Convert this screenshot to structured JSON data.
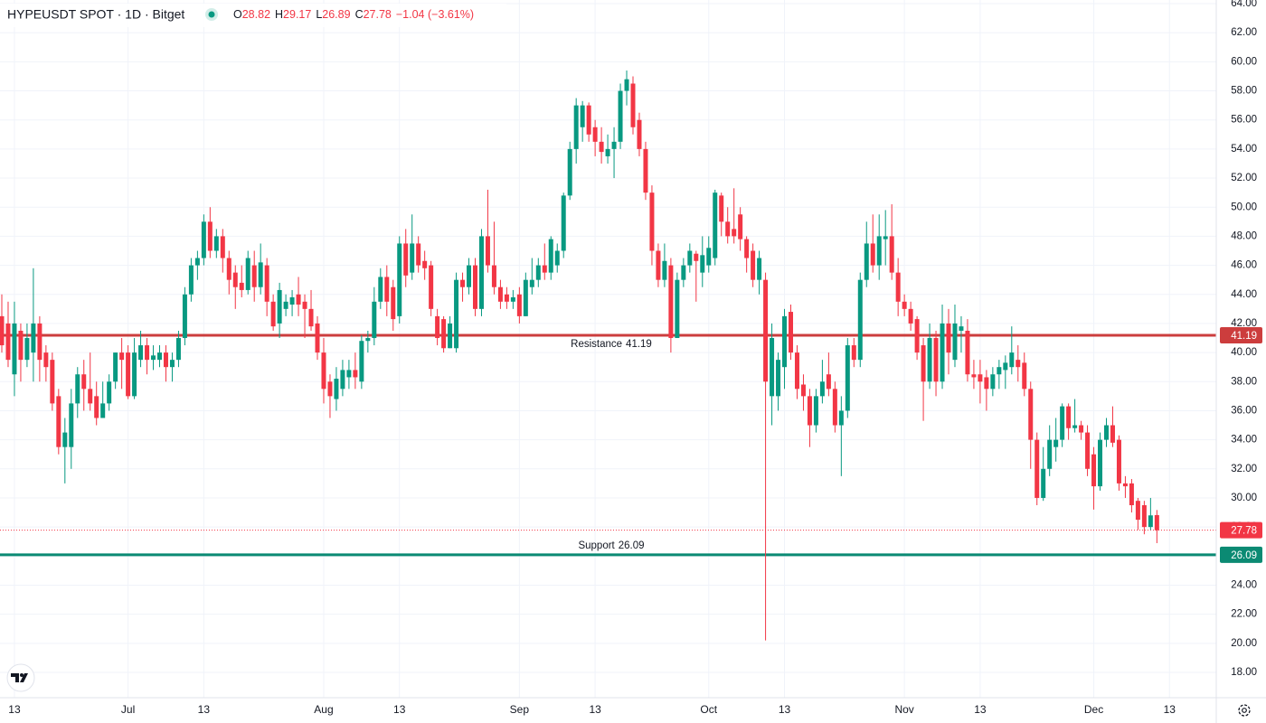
{
  "chart_data": {
    "type": "candlestick",
    "title": "HYPEUSDT SPOT · 1D · Bitget",
    "header": {
      "labels": [
        "O",
        "H",
        "L",
        "C"
      ],
      "values": [
        28.82,
        29.17,
        26.89,
        27.78
      ],
      "change": "−1.04 (−3.61%)"
    },
    "up_color": "#089981",
    "down_color": "#f23645",
    "grid": true,
    "x": [
      "Jun 11",
      "Jun 12",
      "Jun 13",
      "Jun 14",
      "Jun 15",
      "Jun 16",
      "Jun 17",
      "Jun 18",
      "Jun 19",
      "Jun 20",
      "Jun 21",
      "Jun 22",
      "Jun 23",
      "Jun 24",
      "Jun 25",
      "Jun 26",
      "Jun 27",
      "Jun 28",
      "Jun 29",
      "Jun 30",
      "Jul 1",
      "Jul 2",
      "Jul 3",
      "Jul 4",
      "Jul 5",
      "Jul 6",
      "Jul 7",
      "Jul 8",
      "Jul 9",
      "Jul 10",
      "Jul 11",
      "Jul 12",
      "Jul 13",
      "Jul 14",
      "Jul 15",
      "Jul 16",
      "Jul 17",
      "Jul 18",
      "Jul 19",
      "Jul 20",
      "Jul 21",
      "Jul 22",
      "Jul 23",
      "Jul 24",
      "Jul 25",
      "Jul 26",
      "Jul 27",
      "Jul 28",
      "Jul 29",
      "Jul 30",
      "Jul 31",
      "Aug 1",
      "Aug 2",
      "Aug 3",
      "Aug 4",
      "Aug 5",
      "Aug 6",
      "Aug 7",
      "Aug 8",
      "Aug 9",
      "Aug 10",
      "Aug 11",
      "Aug 12",
      "Aug 13",
      "Aug 14",
      "Aug 15",
      "Aug 16",
      "Aug 17",
      "Aug 18",
      "Aug 19",
      "Aug 20",
      "Aug 21",
      "Aug 22",
      "Aug 23",
      "Aug 24",
      "Aug 25",
      "Aug 26",
      "Aug 27",
      "Aug 28",
      "Aug 29",
      "Aug 30",
      "Aug 31",
      "Sep 1",
      "Sep 2",
      "Sep 3",
      "Sep 4",
      "Sep 5",
      "Sep 6",
      "Sep 7",
      "Sep 8",
      "Sep 9",
      "Sep 10",
      "Sep 11",
      "Sep 12",
      "Sep 13",
      "Sep 14",
      "Sep 15",
      "Sep 16",
      "Sep 17",
      "Sep 18",
      "Sep 19",
      "Sep 20",
      "Sep 21",
      "Sep 22",
      "Sep 23",
      "Sep 24",
      "Sep 25",
      "Sep 26",
      "Sep 27",
      "Sep 28",
      "Sep 29",
      "Sep 30",
      "Oct 1",
      "Oct 2",
      "Oct 3",
      "Oct 4",
      "Oct 5",
      "Oct 6",
      "Oct 7",
      "Oct 8",
      "Oct 9",
      "Oct 10",
      "Oct 11",
      "Oct 12",
      "Oct 13",
      "Oct 14",
      "Oct 15",
      "Oct 16",
      "Oct 17",
      "Oct 18",
      "Oct 19",
      "Oct 20",
      "Oct 21",
      "Oct 22",
      "Oct 23",
      "Oct 24",
      "Oct 25",
      "Oct 26",
      "Oct 27",
      "Oct 28",
      "Oct 29",
      "Oct 30",
      "Oct 31",
      "Nov 1",
      "Nov 2",
      "Nov 3",
      "Nov 4",
      "Nov 5",
      "Nov 6",
      "Nov 7",
      "Nov 8",
      "Nov 9",
      "Nov 10",
      "Nov 11",
      "Nov 12",
      "Nov 13",
      "Nov 14",
      "Nov 15",
      "Nov 16",
      "Nov 17",
      "Nov 18",
      "Nov 19",
      "Nov 20",
      "Nov 21",
      "Nov 22",
      "Nov 23",
      "Nov 24",
      "Nov 25",
      "Nov 26",
      "Nov 27",
      "Nov 28",
      "Nov 29",
      "Nov 30",
      "Dec 1",
      "Dec 2",
      "Dec 3",
      "Dec 4",
      "Dec 5",
      "Dec 6",
      "Dec 7",
      "Dec 8",
      "Dec 9",
      "Dec 10",
      "Dec 11"
    ],
    "ohlc": [
      [
        42.5,
        44,
        40,
        40.5
      ],
      [
        42,
        43.5,
        39,
        39.5
      ],
      [
        38.5,
        43.5,
        37,
        42
      ],
      [
        41.5,
        42,
        38,
        39.5
      ],
      [
        39.5,
        42,
        39,
        41
      ],
      [
        40,
        45.8,
        38,
        42
      ],
      [
        42,
        42.5,
        38,
        39.5
      ],
      [
        40,
        40.5,
        38,
        39
      ],
      [
        39.5,
        40,
        36,
        36.5
      ],
      [
        37,
        37.5,
        33,
        33.5
      ],
      [
        33.5,
        35.5,
        31,
        34.5
      ],
      [
        33.5,
        37.5,
        32,
        36.5
      ],
      [
        36.5,
        39,
        35.5,
        38.5
      ],
      [
        38.5,
        39.5,
        36,
        37.5
      ],
      [
        37.5,
        40,
        36,
        36.5
      ],
      [
        37,
        38,
        35,
        35.5
      ],
      [
        35.5,
        38,
        35.5,
        36.5
      ],
      [
        36.5,
        38.5,
        36,
        38
      ],
      [
        38,
        40,
        37.5,
        40
      ],
      [
        40,
        41,
        37.5,
        39.5
      ],
      [
        40,
        40.5,
        36.8,
        37
      ],
      [
        37,
        41,
        36.8,
        40
      ],
      [
        39.5,
        41.5,
        39,
        40.5
      ],
      [
        40.5,
        41,
        38.5,
        39.5
      ],
      [
        39.5,
        40.5,
        38.8,
        39.8
      ],
      [
        39.5,
        40.5,
        39,
        40
      ],
      [
        40,
        40.5,
        38,
        39
      ],
      [
        39,
        40,
        38,
        39.5
      ],
      [
        39.5,
        41.5,
        39,
        41
      ],
      [
        41,
        44.5,
        40.5,
        44
      ],
      [
        44,
        46.5,
        43.5,
        46
      ],
      [
        46,
        47,
        45,
        46.5
      ],
      [
        46.5,
        49.5,
        46,
        49
      ],
      [
        49,
        50,
        46.5,
        47
      ],
      [
        47,
        48.5,
        46.5,
        48
      ],
      [
        48,
        48.5,
        45.5,
        46.5
      ],
      [
        46.5,
        47,
        44,
        45
      ],
      [
        45.5,
        46,
        43,
        44.5
      ],
      [
        44.8,
        46,
        43.8,
        44.3
      ],
      [
        44.3,
        47,
        44,
        46.5
      ],
      [
        46,
        47,
        43.5,
        44.5
      ],
      [
        44.5,
        47.5,
        44,
        46.2
      ],
      [
        46,
        46.5,
        42.5,
        43.5
      ],
      [
        43.5,
        44,
        41.5,
        41.8
      ],
      [
        42,
        44.8,
        41,
        44.3
      ],
      [
        43,
        44,
        42.5,
        43.5
      ],
      [
        43.3,
        44.3,
        42.5,
        43.8
      ],
      [
        44,
        45.2,
        42.5,
        43.3
      ],
      [
        43.5,
        44,
        41,
        43
      ],
      [
        43,
        44.3,
        41.5,
        41.8
      ],
      [
        42,
        42.5,
        39.5,
        40
      ],
      [
        40,
        41,
        36.5,
        37.5
      ],
      [
        38,
        38.5,
        35.5,
        37
      ],
      [
        36.8,
        39,
        36,
        38.2
      ],
      [
        37.5,
        39.5,
        37,
        38.8
      ],
      [
        38.3,
        39.5,
        37.5,
        38.8
      ],
      [
        38.8,
        40,
        37.5,
        38.3
      ],
      [
        38,
        41.2,
        37.5,
        40.8
      ],
      [
        40.8,
        41.5,
        40,
        41
      ],
      [
        41,
        44.5,
        40.5,
        43.5
      ],
      [
        43.5,
        45.8,
        43,
        45.2
      ],
      [
        45.2,
        46,
        42.5,
        43.5
      ],
      [
        44.5,
        45,
        41.5,
        42.3
      ],
      [
        42.5,
        48,
        42,
        47.5
      ],
      [
        47.5,
        48.5,
        44.5,
        45.3
      ],
      [
        45.5,
        49.5,
        45,
        47.5
      ],
      [
        47.5,
        48,
        45.5,
        46
      ],
      [
        46.3,
        47,
        45,
        45.8
      ],
      [
        46,
        46.3,
        42.5,
        43
      ],
      [
        42.5,
        43,
        40.5,
        41
      ],
      [
        42.3,
        42.5,
        40,
        40.3
      ],
      [
        40.3,
        42.5,
        40.3,
        42
      ],
      [
        40.3,
        45.5,
        40,
        45
      ],
      [
        45,
        45.5,
        43.5,
        44.5
      ],
      [
        44.5,
        46.5,
        44,
        46
      ],
      [
        46,
        46.5,
        42.5,
        43
      ],
      [
        43,
        48.5,
        42.5,
        48
      ],
      [
        48,
        51.2,
        45.5,
        46
      ],
      [
        46,
        49,
        44,
        44.5
      ],
      [
        44.5,
        45,
        43,
        43.5
      ],
      [
        44,
        44.5,
        43,
        43.5
      ],
      [
        43.5,
        44.3,
        43,
        43.8
      ],
      [
        44,
        44.5,
        42,
        42.5
      ],
      [
        42.5,
        45.5,
        42.5,
        45
      ],
      [
        44.5,
        46.5,
        44,
        45
      ],
      [
        45,
        46.5,
        44.5,
        46
      ],
      [
        46,
        47.5,
        45,
        45.5
      ],
      [
        45.5,
        48,
        45,
        47.8
      ],
      [
        46,
        47.5,
        45.5,
        47
      ],
      [
        47,
        51,
        46.5,
        50.8
      ],
      [
        50.8,
        54.5,
        50.5,
        54
      ],
      [
        54,
        57.5,
        53,
        57
      ],
      [
        55.5,
        57.3,
        54.5,
        57
      ],
      [
        57,
        57.2,
        54.5,
        55
      ],
      [
        55.5,
        56,
        53.5,
        54.5
      ],
      [
        54.5,
        55.5,
        53,
        53.8
      ],
      [
        53.5,
        55,
        53,
        54
      ],
      [
        54,
        55.5,
        52,
        54.5
      ],
      [
        54.5,
        58.5,
        54,
        58
      ],
      [
        58,
        59.4,
        57,
        58.8
      ],
      [
        58.5,
        59,
        55,
        55.5
      ],
      [
        56,
        56.5,
        53.5,
        54
      ],
      [
        54,
        54.5,
        50.5,
        51
      ],
      [
        51,
        51.5,
        46,
        47
      ],
      [
        47,
        47.5,
        44.5,
        45
      ],
      [
        45,
        47.5,
        44.5,
        46.3
      ],
      [
        46,
        46.5,
        40,
        41
      ],
      [
        41,
        45.5,
        41,
        45
      ],
      [
        45,
        46.5,
        44.5,
        46
      ],
      [
        46,
        47.5,
        45.5,
        47
      ],
      [
        46.8,
        47,
        43.5,
        46.3
      ],
      [
        45.5,
        48,
        44.5,
        46.7
      ],
      [
        46,
        48,
        45.5,
        47.2
      ],
      [
        46.5,
        51.2,
        46,
        51
      ],
      [
        50.8,
        51,
        48,
        49
      ],
      [
        49,
        50,
        47.5,
        48
      ],
      [
        48.5,
        51.3,
        47.5,
        48
      ],
      [
        49.5,
        50,
        47,
        47.8
      ],
      [
        47.8,
        48,
        45.5,
        46.5
      ],
      [
        47,
        47.5,
        44.5,
        45
      ],
      [
        45,
        47,
        44,
        46.5
      ],
      [
        45,
        45.5,
        20.2,
        38
      ],
      [
        37,
        42,
        35,
        41
      ],
      [
        37,
        40,
        36,
        39.5
      ],
      [
        39,
        43,
        37.5,
        42.5
      ],
      [
        42.8,
        43.3,
        39.5,
        40
      ],
      [
        40,
        40.5,
        36.8,
        37.5
      ],
      [
        37.8,
        38.5,
        36,
        37
      ],
      [
        37,
        37.5,
        33.5,
        35
      ],
      [
        35,
        37.5,
        34.5,
        37
      ],
      [
        37,
        39.5,
        36.5,
        38
      ],
      [
        38.5,
        40,
        37,
        37.5
      ],
      [
        37.5,
        38,
        34.5,
        35
      ],
      [
        35,
        37,
        31.5,
        36
      ],
      [
        36,
        41,
        35.5,
        40.5
      ],
      [
        40.5,
        41,
        39,
        39.5
      ],
      [
        39.5,
        45.5,
        39,
        45
      ],
      [
        45,
        49,
        44.5,
        47.5
      ],
      [
        47.5,
        49.5,
        45.5,
        46
      ],
      [
        46,
        49.5,
        45,
        48
      ],
      [
        47.8,
        49.8,
        46,
        48
      ],
      [
        48,
        50.2,
        45,
        45.5
      ],
      [
        45.5,
        46.5,
        42.5,
        43.5
      ],
      [
        43.5,
        44,
        42.5,
        43
      ],
      [
        43,
        43.5,
        41.5,
        42
      ],
      [
        42.3,
        42.5,
        39.5,
        40
      ],
      [
        40.5,
        41,
        35.3,
        38
      ],
      [
        38,
        42,
        37.5,
        41
      ],
      [
        41,
        41.5,
        37,
        38
      ],
      [
        38,
        43.3,
        37.5,
        42
      ],
      [
        42,
        43,
        38.5,
        40
      ],
      [
        39.5,
        43.3,
        39,
        42
      ],
      [
        41.5,
        42.5,
        40,
        41.8
      ],
      [
        41.5,
        42.3,
        38,
        38.5
      ],
      [
        38.5,
        39.5,
        37.5,
        38.3
      ],
      [
        38.5,
        39.5,
        36.5,
        38
      ],
      [
        38.3,
        38.8,
        36,
        37.5
      ],
      [
        37.5,
        39,
        37,
        38.5
      ],
      [
        38.5,
        39.5,
        37.5,
        39
      ],
      [
        38.8,
        39.8,
        37.5,
        39.3
      ],
      [
        39,
        41.8,
        38.5,
        40
      ],
      [
        39.5,
        40.5,
        38,
        39
      ],
      [
        39.3,
        40,
        37,
        37.5
      ],
      [
        37.5,
        38,
        32,
        34
      ],
      [
        34,
        34.5,
        29.5,
        30
      ],
      [
        30,
        33.5,
        29.8,
        32
      ],
      [
        32,
        35,
        31.5,
        34
      ],
      [
        33.5,
        35.5,
        32.5,
        34
      ],
      [
        34,
        36.5,
        33.5,
        36.3
      ],
      [
        36.3,
        36.5,
        34,
        34.8
      ],
      [
        34.8,
        36.8,
        34.5,
        35
      ],
      [
        35,
        35.3,
        34,
        34.5
      ],
      [
        34.5,
        35,
        31.5,
        32
      ],
      [
        33,
        33.5,
        29.2,
        30.8
      ],
      [
        30.8,
        34.5,
        30.5,
        34
      ],
      [
        34,
        35.5,
        33.5,
        35
      ],
      [
        35,
        36.3,
        33.5,
        33.8
      ],
      [
        34,
        34.3,
        30.5,
        31
      ],
      [
        31,
        31.5,
        30,
        30.8
      ],
      [
        31,
        31.3,
        29,
        29.5
      ],
      [
        29.8,
        30,
        27.8,
        28.5
      ],
      [
        29.5,
        29.8,
        27.5,
        28
      ],
      [
        28,
        30,
        27.8,
        28.8
      ],
      [
        28.82,
        29.17,
        26.89,
        27.78
      ]
    ],
    "ylim": [
      16.26,
      64.25
    ],
    "yticks": [
      {
        "value": 18,
        "label": "18.00"
      },
      {
        "value": 20,
        "label": "20.00"
      },
      {
        "value": 22,
        "label": "22.00"
      },
      {
        "value": 24,
        "label": "24.00"
      },
      {
        "value": 26,
        "label": "26.00"
      },
      {
        "value": 28,
        "label": "28.00"
      },
      {
        "value": 30,
        "label": "30.00"
      },
      {
        "value": 32,
        "label": "32.00"
      },
      {
        "value": 34,
        "label": "34.00"
      },
      {
        "value": 36,
        "label": "36.00"
      },
      {
        "value": 38,
        "label": "38.00"
      },
      {
        "value": 40,
        "label": "40.00"
      },
      {
        "value": 42,
        "label": "42.00"
      },
      {
        "value": 44,
        "label": "44.00"
      },
      {
        "value": 46,
        "label": "46.00"
      },
      {
        "value": 48,
        "label": "48.00"
      },
      {
        "value": 50,
        "label": "50.00"
      },
      {
        "value": 52,
        "label": "52.00"
      },
      {
        "value": 54,
        "label": "54.00"
      },
      {
        "value": 56,
        "label": "56.00"
      },
      {
        "value": 58,
        "label": "58.00"
      },
      {
        "value": 60,
        "label": "60.00"
      },
      {
        "value": 62,
        "label": "62.00"
      },
      {
        "value": 64,
        "label": "64.00"
      }
    ],
    "xticks": [
      {
        "value": "Jun 13",
        "label": "13"
      },
      {
        "value": "Jul 1",
        "label": "Jul"
      },
      {
        "value": "Jul 13",
        "label": "13"
      },
      {
        "value": "Aug 1",
        "label": "Aug"
      },
      {
        "value": "Aug 13",
        "label": "13"
      },
      {
        "value": "Sep 1",
        "label": "Sep"
      },
      {
        "value": "Sep 13",
        "label": "13"
      },
      {
        "value": "Oct 1",
        "label": "Oct"
      },
      {
        "value": "Oct 13",
        "label": "13"
      },
      {
        "value": "Nov 1",
        "label": "Nov"
      },
      {
        "value": "Nov 13",
        "label": "13"
      },
      {
        "value": "Dec 1",
        "label": "Dec"
      },
      {
        "value": "Dec 13",
        "label": "13"
      }
    ],
    "levels": [
      {
        "name": "Resistance",
        "value": 41.19,
        "color": "#cc3d3d",
        "label_side": "below"
      },
      {
        "name": "Support",
        "value": 26.09,
        "color": "#0b8a73",
        "label_side": "above"
      }
    ]
  }
}
